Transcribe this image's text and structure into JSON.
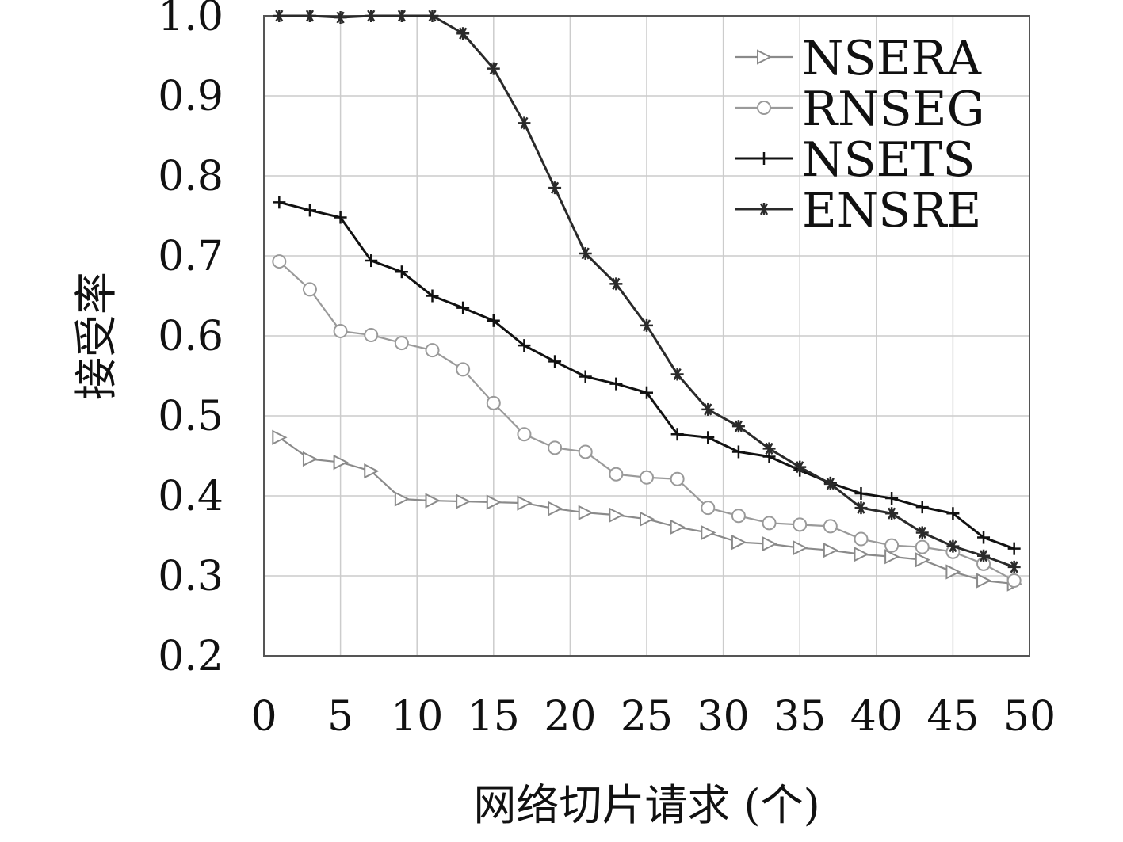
{
  "chart_data": {
    "type": "line",
    "title": "",
    "xlabel": "网络切片请求 (个)",
    "ylabel": "接受率",
    "xlim": [
      0,
      50
    ],
    "ylim": [
      0.2,
      1.0
    ],
    "xticks": [
      "0",
      "5",
      "10",
      "15",
      "20",
      "25",
      "30",
      "35",
      "40",
      "45",
      "50"
    ],
    "yticks": [
      "0.2",
      "0.3",
      "0.4",
      "0.5",
      "0.6",
      "0.7",
      "0.8",
      "0.9",
      "1.0"
    ],
    "grid": true,
    "legend_position": "top-right",
    "x": [
      1,
      3,
      5,
      7,
      9,
      11,
      13,
      15,
      17,
      19,
      21,
      23,
      25,
      27,
      29,
      31,
      33,
      35,
      37,
      39,
      41,
      43,
      45,
      47,
      49
    ],
    "series": [
      {
        "name": "NSERA",
        "marker": "triangle-right",
        "color": "#8a8a8a",
        "values": [
          0.473,
          0.446,
          0.442,
          0.431,
          0.396,
          0.394,
          0.393,
          0.392,
          0.391,
          0.384,
          0.379,
          0.376,
          0.371,
          0.361,
          0.354,
          0.342,
          0.34,
          0.335,
          0.332,
          0.327,
          0.324,
          0.32,
          0.305,
          0.294,
          0.29
        ]
      },
      {
        "name": "RNSEG",
        "marker": "circle",
        "color": "#9a9a9a",
        "values": [
          0.693,
          0.658,
          0.606,
          0.601,
          0.591,
          0.582,
          0.558,
          0.516,
          0.477,
          0.46,
          0.455,
          0.427,
          0.423,
          0.421,
          0.385,
          0.375,
          0.366,
          0.364,
          0.362,
          0.346,
          0.338,
          0.336,
          0.33,
          0.315,
          0.294
        ]
      },
      {
        "name": "NSETS",
        "marker": "plus",
        "color": "#111111",
        "values": [
          0.767,
          0.757,
          0.748,
          0.694,
          0.68,
          0.65,
          0.635,
          0.619,
          0.588,
          0.568,
          0.549,
          0.54,
          0.529,
          0.477,
          0.473,
          0.455,
          0.449,
          0.432,
          0.416,
          0.403,
          0.397,
          0.386,
          0.378,
          0.348,
          0.334
        ]
      },
      {
        "name": "ENSRE",
        "marker": "asterisk",
        "color": "#2a2a2a",
        "values": [
          1.0,
          1.0,
          0.998,
          1.0,
          1.0,
          1.0,
          0.978,
          0.934,
          0.866,
          0.785,
          0.703,
          0.665,
          0.613,
          0.552,
          0.508,
          0.487,
          0.459,
          0.436,
          0.415,
          0.385,
          0.378,
          0.354,
          0.337,
          0.325,
          0.311
        ]
      }
    ]
  }
}
